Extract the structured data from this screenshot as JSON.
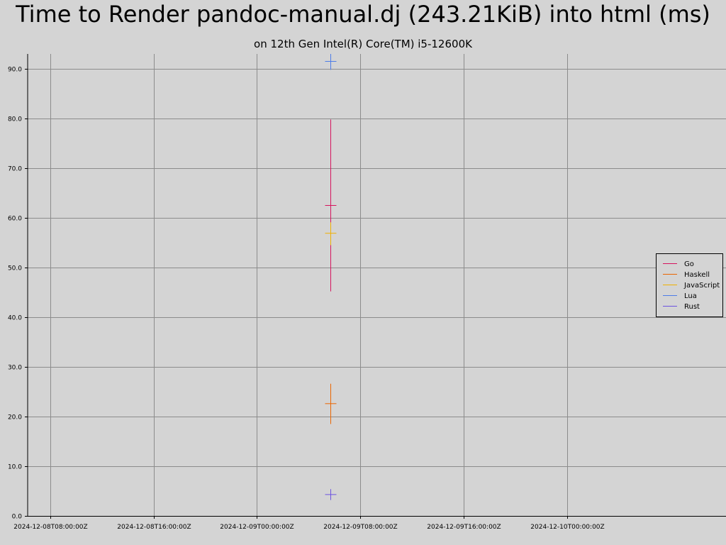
{
  "chart_data": {
    "type": "scatter",
    "title": "Time to Render pandoc-manual.dj (243.21KiB) into html (ms)",
    "subtitle": "on 12th Gen Intel(R) Core(TM) i5-12600K",
    "xlabel": "",
    "ylabel": "",
    "xlim": [
      "2024-12-08T06:16:00Z",
      "2024-12-10T12:16:00Z"
    ],
    "ylim": [
      0,
      93
    ],
    "x_ticks": [
      "2024-12-08T08:00:00Z",
      "2024-12-08T16:00:00Z",
      "2024-12-09T00:00:00Z",
      "2024-12-09T08:00:00Z",
      "2024-12-09T16:00:00Z",
      "2024-12-10T00:00:00Z"
    ],
    "y_ticks": [
      "0.0",
      "10.0",
      "20.0",
      "30.0",
      "40.0",
      "50.0",
      "60.0",
      "70.0",
      "80.0",
      "90.0"
    ],
    "grid": true,
    "legend_position": "right",
    "series": [
      {
        "name": "Go",
        "color": "#d6135d",
        "x": "2024-12-09T05:40:00Z",
        "y": 62.5,
        "low": 45.2,
        "high": 79.8
      },
      {
        "name": "Haskell",
        "color": "#ea6500",
        "x": "2024-12-09T05:40:00Z",
        "y": 22.6,
        "low": 18.5,
        "high": 26.6
      },
      {
        "name": "JavaScript",
        "color": "#f0b000",
        "x": "2024-12-09T05:40:00Z",
        "y": 56.9,
        "low": 54.5,
        "high": 59.1
      },
      {
        "name": "Lua",
        "color": "#4d7ce8",
        "x": "2024-12-09T05:40:00Z",
        "y": 91.5,
        "low": 89.8,
        "high": 93.0
      },
      {
        "name": "Rust",
        "color": "#6c52e0",
        "x": "2024-12-09T05:40:00Z",
        "y": 4.3,
        "low": 3.2,
        "high": 5.4
      }
    ]
  }
}
